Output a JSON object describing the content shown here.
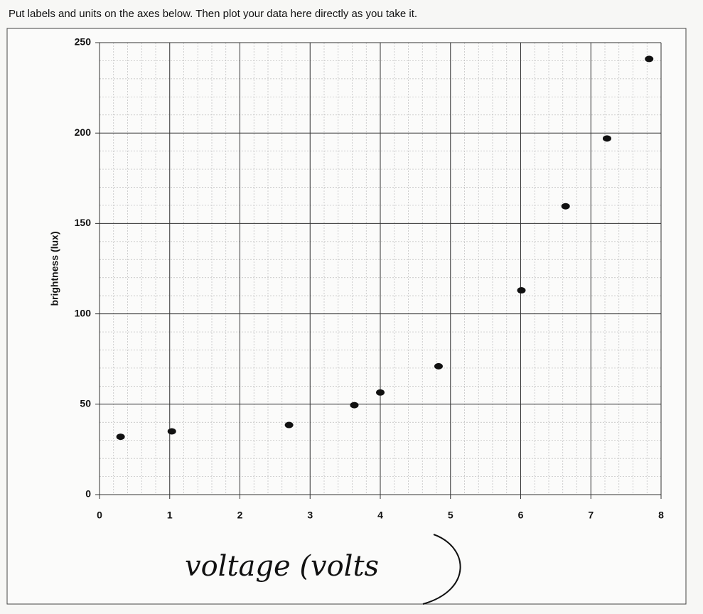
{
  "instructions": "Put labels and units on the axes below.  Then plot your data here directly as you take it.",
  "chart_data": {
    "type": "scatter",
    "y_label": "brightness (lux)",
    "x_label": "voltage (volts",
    "x": [
      0.3,
      1.03,
      2.7,
      3.63,
      4.0,
      4.83,
      6.01,
      6.64,
      7.23,
      7.83
    ],
    "values": [
      32,
      35,
      38.5,
      49.5,
      56.5,
      71,
      113,
      159.5,
      197,
      241
    ],
    "color": "#111111",
    "xlim": [
      0,
      8
    ],
    "xticks": [
      0,
      1,
      2,
      3,
      4,
      5,
      6,
      7,
      8
    ],
    "ylim": [
      0,
      250
    ],
    "yticks": [
      0,
      50,
      100,
      150,
      200,
      250
    ],
    "grid": true
  }
}
